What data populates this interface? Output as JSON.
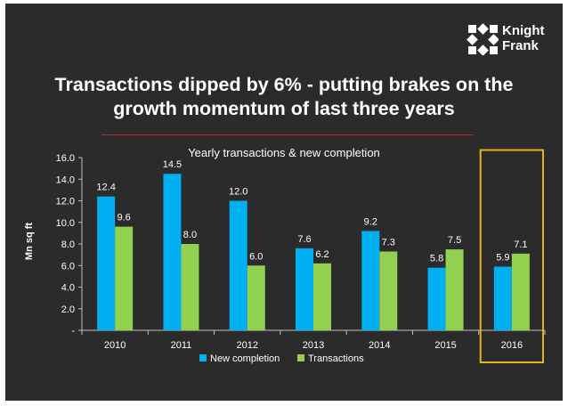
{
  "brand": {
    "name_line1": "Knight",
    "name_line2": "Frank",
    "logo_color": "#ffffff"
  },
  "slide_title": "Transactions dipped by 6% - putting brakes on the growth momentum of last three years",
  "colors": {
    "background": "#2b2b2b",
    "new_completion": "#00b0f0",
    "transactions": "#92d050",
    "highlight": "#e7b21e",
    "title_rule": "#b3262b"
  },
  "chart_data": {
    "type": "bar",
    "title": "Yearly transactions & new completion",
    "xlabel": "",
    "ylabel": "Mn sq ft",
    "categories": [
      "2010",
      "2011",
      "2012",
      "2013",
      "2014",
      "2015",
      "2016"
    ],
    "series": [
      {
        "name": "New completion",
        "values": [
          12.4,
          14.5,
          12.0,
          7.6,
          9.2,
          5.8,
          5.9
        ]
      },
      {
        "name": "Transactions",
        "values": [
          9.6,
          8.0,
          6.0,
          6.2,
          7.3,
          7.5,
          7.1
        ]
      }
    ],
    "ylim": [
      0,
      16
    ],
    "yticks": [
      "-",
      "2.0",
      "4.0",
      "6.0",
      "8.0",
      "10.0",
      "12.0",
      "14.0",
      "16.0"
    ],
    "ytick_values": [
      0,
      2,
      4,
      6,
      8,
      10,
      12,
      14,
      16
    ],
    "grid": false,
    "legend": "bottom",
    "highlighted_category": "2016"
  }
}
